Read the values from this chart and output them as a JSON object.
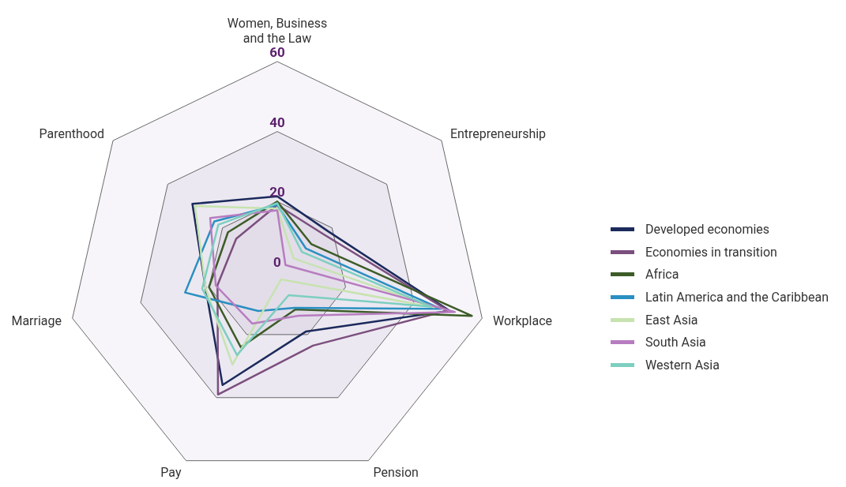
{
  "chart_data": {
    "type": "radar",
    "categories": [
      "Women, Business and the Law",
      "Entrepreneurship",
      "Workplace",
      "Pension",
      "Pay",
      "Marriage",
      "Parenthood"
    ],
    "series": [
      {
        "name": "Developed economies",
        "color": "#1b2a5c",
        "values": [
          21.5,
          18.5,
          50.5,
          19,
          36,
          21,
          31
        ]
      },
      {
        "name": "Economies in transition",
        "color": "#7b4f7e",
        "values": [
          19,
          17,
          50,
          23.5,
          39,
          17.5,
          15
        ]
      },
      {
        "name": "Africa",
        "color": "#3d5c28",
        "values": [
          20,
          12.5,
          57,
          12,
          24,
          20,
          18
        ]
      },
      {
        "name": "Latin America and the Caribbean",
        "color": "#2a8fc1",
        "values": [
          19,
          10.5,
          48,
          11.5,
          12.5,
          27,
          23
        ]
      },
      {
        "name": "East Asia",
        "color": "#c7e3b0",
        "values": [
          18,
          6,
          46,
          2.5,
          29.5,
          21,
          30
        ]
      },
      {
        "name": "South Asia",
        "color": "#b77cc0",
        "values": [
          17.5,
          3,
          52,
          14,
          16.5,
          18,
          24.5
        ]
      },
      {
        "name": "Western Asia",
        "color": "#7dcfc0",
        "values": [
          19.5,
          9,
          45,
          7.5,
          26.5,
          22,
          21.5
        ]
      }
    ],
    "ylim": [
      0,
      60
    ],
    "yticks": [
      0,
      20,
      40,
      60
    ],
    "grid": true,
    "legend": "right"
  }
}
